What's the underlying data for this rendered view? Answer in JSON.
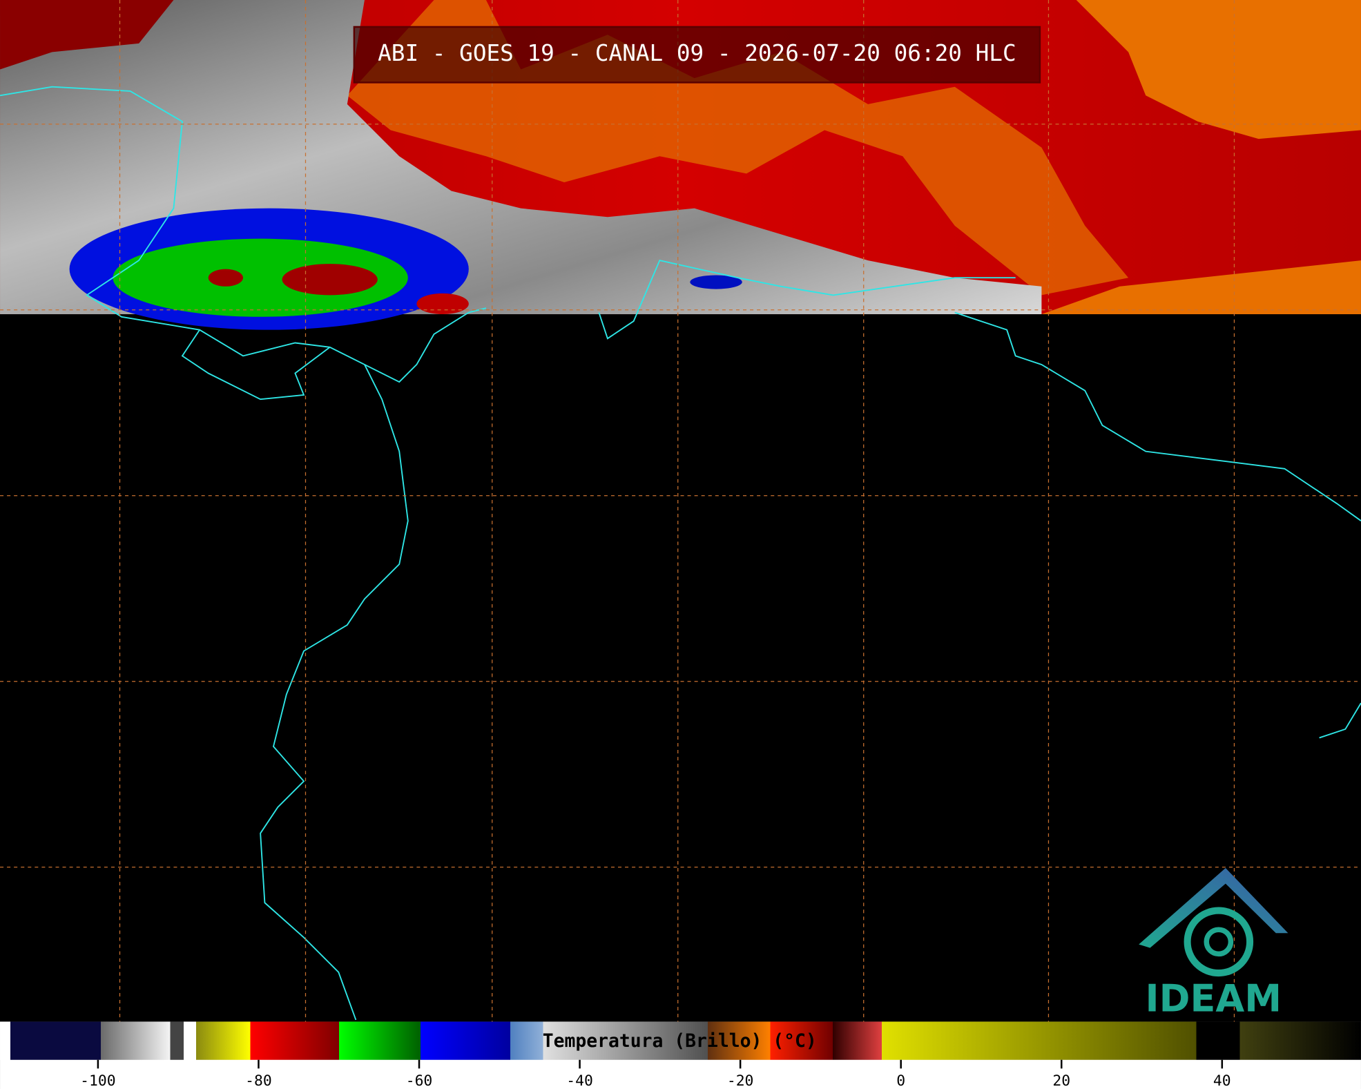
{
  "title": "ABI - GOES 19 - CANAL 09 - 2026-07-20 06:20 HLC",
  "colorbar": {
    "label": "Temperatura (Brillo) (°C)",
    "range": [
      -112.2,
      57.3
    ],
    "ticks": [
      -100,
      -80,
      -60,
      -40,
      -20,
      0,
      20,
      40
    ]
  },
  "logo": {
    "text": "IDEAM"
  }
}
